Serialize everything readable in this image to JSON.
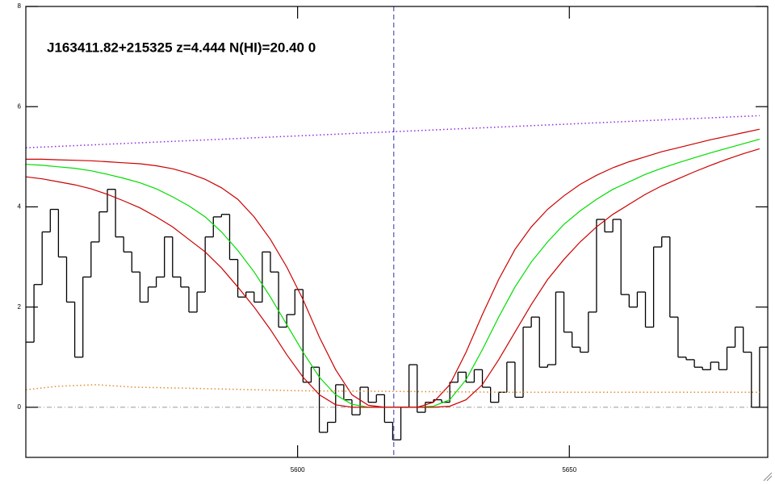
{
  "chart_data": {
    "type": "line",
    "annotation": "J163411.82+215325 z=4.444 N(HI)=20.40 0",
    "xlim": [
      5550,
      5686.5
    ],
    "ylim": [
      -1,
      8
    ],
    "xticks": [
      5600,
      5650
    ],
    "yticks": [
      0,
      2,
      4,
      6,
      8
    ],
    "hline": 0,
    "vline": 5617.7,
    "series": [
      {
        "color": "#000000",
        "drawstyle": "steps",
        "linestyle": "solid",
        "x": [
          5550,
          5551.5,
          5553,
          5554.5,
          5556,
          5557.5,
          5559,
          5560.5,
          5562,
          5563.5,
          5565,
          5566.5,
          5568,
          5569.5,
          5571,
          5572.5,
          5574,
          5575.5,
          5577,
          5578.5,
          5580,
          5581.5,
          5583,
          5584.5,
          5586,
          5587.5,
          5589,
          5590.5,
          5592,
          5593.5,
          5595,
          5596.5,
          5598,
          5599.5,
          5601,
          5602.5,
          5604,
          5605.5,
          5607,
          5608.5,
          5610,
          5611.5,
          5613,
          5614.5,
          5616,
          5617.5,
          5619,
          5620.5,
          5622,
          5623.5,
          5625,
          5626.5,
          5628,
          5629.5,
          5631,
          5632.5,
          5634,
          5635.5,
          5637,
          5638.5,
          5640,
          5641.5,
          5643,
          5644.5,
          5646,
          5647.5,
          5649,
          5650.5,
          5652,
          5653.5,
          5655,
          5656.5,
          5658,
          5659.5,
          5661,
          5662.5,
          5664,
          5665.5,
          5667,
          5668.5,
          5670,
          5671.5,
          5673,
          5674.5,
          5676,
          5677.5,
          5679,
          5680.5,
          5682,
          5683.5,
          5685
        ],
        "values": [
          1.3,
          2.45,
          3.5,
          3.95,
          3.0,
          2.1,
          1.0,
          2.6,
          3.3,
          3.9,
          4.35,
          3.4,
          3.1,
          2.7,
          2.1,
          2.4,
          2.6,
          3.4,
          2.6,
          2.4,
          1.9,
          2.3,
          3.4,
          3.8,
          3.85,
          2.95,
          2.2,
          2.3,
          2.1,
          3.1,
          2.7,
          1.6,
          1.85,
          2.35,
          0.5,
          0.8,
          -0.5,
          -0.3,
          0.45,
          0.15,
          -0.15,
          0.4,
          0.1,
          0.25,
          -0.3,
          -0.65,
          0.0,
          0.85,
          -0.1,
          0.1,
          0.15,
          0.1,
          0.5,
          0.7,
          0.5,
          0.75,
          0.4,
          0.1,
          0.3,
          0.9,
          0.2,
          1.6,
          1.8,
          0.8,
          0.85,
          2.3,
          1.5,
          1.2,
          1.1,
          1.9,
          3.75,
          3.5,
          3.75,
          2.25,
          2.0,
          2.3,
          1.6,
          3.2,
          3.4,
          1.8,
          1.0,
          0.95,
          0.8,
          0.75,
          0.9,
          0.75,
          1.2,
          1.6,
          1.1,
          0.0,
          1.2
        ]
      },
      {
        "color": "#00dd00",
        "drawstyle": "line",
        "linestyle": "solid",
        "x": [
          5550,
          5553,
          5556,
          5559,
          5562,
          5565,
          5568,
          5571,
          5574,
          5577,
          5580,
          5583,
          5586,
          5589,
          5592,
          5595,
          5598,
          5601,
          5604,
          5607,
          5610,
          5613,
          5616,
          5619,
          5622,
          5625,
          5628,
          5631,
          5634,
          5637,
          5640,
          5643,
          5646,
          5649,
          5652,
          5655,
          5658,
          5661,
          5664,
          5667,
          5670,
          5673,
          5676,
          5679,
          5682,
          5685
        ],
        "values": [
          4.85,
          4.83,
          4.8,
          4.77,
          4.72,
          4.65,
          4.57,
          4.48,
          4.36,
          4.2,
          4.02,
          3.8,
          3.5,
          3.13,
          2.7,
          2.2,
          1.65,
          1.1,
          0.6,
          0.25,
          0.06,
          0,
          0,
          0,
          0,
          0.02,
          0.15,
          0.55,
          1.15,
          1.8,
          2.4,
          2.9,
          3.3,
          3.65,
          3.92,
          4.15,
          4.35,
          4.5,
          4.65,
          4.77,
          4.88,
          4.98,
          5.08,
          5.17,
          5.26,
          5.35
        ]
      },
      {
        "color": "#cc0000",
        "drawstyle": "line",
        "linestyle": "solid",
        "x": [
          5550,
          5553,
          5556,
          5559,
          5562,
          5565,
          5568,
          5571,
          5574,
          5577,
          5580,
          5583,
          5586,
          5589,
          5592,
          5595,
          5598,
          5601,
          5604,
          5607,
          5610,
          5613,
          5616,
          5619,
          5622,
          5625,
          5628,
          5631,
          5634,
          5637,
          5640,
          5643,
          5646,
          5649,
          5652,
          5655,
          5658,
          5661,
          5664,
          5667,
          5670,
          5673,
          5676,
          5679,
          5682,
          5685
        ],
        "values": [
          4.95,
          4.95,
          4.94,
          4.93,
          4.92,
          4.9,
          4.88,
          4.86,
          4.82,
          4.76,
          4.67,
          4.55,
          4.38,
          4.15,
          3.8,
          3.35,
          2.8,
          2.15,
          1.4,
          0.75,
          0.25,
          0.04,
          0,
          0,
          0,
          0.1,
          0.45,
          1.1,
          1.85,
          2.55,
          3.15,
          3.6,
          3.95,
          4.22,
          4.45,
          4.63,
          4.78,
          4.9,
          5.0,
          5.1,
          5.18,
          5.26,
          5.34,
          5.41,
          5.48,
          5.55
        ]
      },
      {
        "color": "#cc0000",
        "drawstyle": "line",
        "linestyle": "solid",
        "x": [
          5550,
          5553,
          5556,
          5559,
          5562,
          5565,
          5568,
          5571,
          5574,
          5577,
          5580,
          5583,
          5586,
          5589,
          5592,
          5595,
          5598,
          5601,
          5604,
          5607,
          5610,
          5613,
          5616,
          5619,
          5622,
          5625,
          5628,
          5631,
          5634,
          5637,
          5640,
          5643,
          5646,
          5649,
          5652,
          5655,
          5658,
          5661,
          5664,
          5667,
          5670,
          5673,
          5676,
          5679,
          5682,
          5685
        ],
        "values": [
          4.6,
          4.56,
          4.5,
          4.44,
          4.36,
          4.25,
          4.12,
          3.98,
          3.8,
          3.6,
          3.35,
          3.1,
          2.78,
          2.4,
          2.0,
          1.55,
          1.05,
          0.6,
          0.25,
          0.05,
          0,
          0,
          0,
          0,
          0,
          0,
          0.02,
          0.15,
          0.45,
          0.95,
          1.5,
          2.05,
          2.55,
          2.95,
          3.3,
          3.6,
          3.85,
          4.05,
          4.25,
          4.42,
          4.56,
          4.7,
          4.83,
          4.95,
          5.06,
          5.16
        ]
      },
      {
        "color": "#8a2be2",
        "drawstyle": "line",
        "linestyle": "dotted",
        "x": [
          5550,
          5685
        ],
        "values": [
          5.18,
          5.82
        ]
      },
      {
        "color": "#e08a30",
        "drawstyle": "line",
        "linestyle": "dotted",
        "x": [
          5550,
          5556,
          5563,
          5570,
          5580,
          5600,
          5640,
          5685
        ],
        "values": [
          0.35,
          0.42,
          0.45,
          0.4,
          0.38,
          0.33,
          0.3,
          0.3
        ]
      }
    ]
  }
}
